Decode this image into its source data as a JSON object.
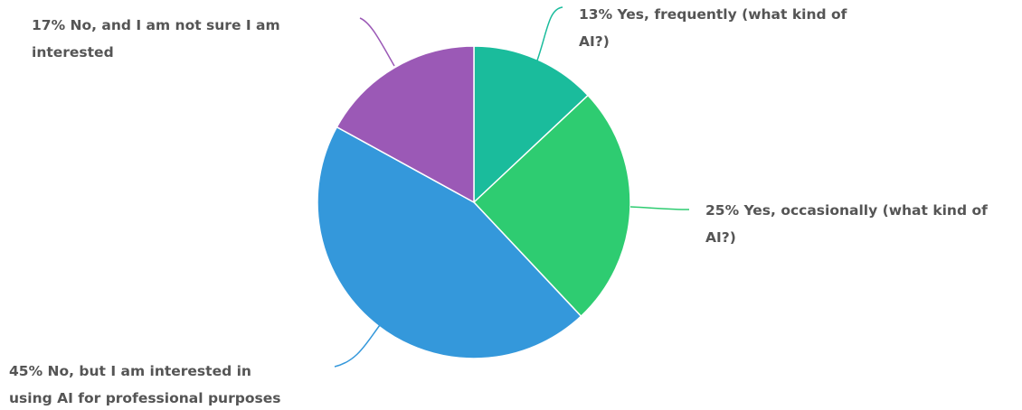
{
  "chart_data": {
    "type": "pie",
    "slices": [
      {
        "percent_label": "13%",
        "label": "Yes, frequently (what kind of AI?)",
        "value": 13,
        "color": "#1abc9c"
      },
      {
        "percent_label": "25%",
        "label": "Yes, occasionally (what kind of AI?)",
        "value": 25,
        "color": "#2ecc71"
      },
      {
        "percent_label": "45%",
        "label": "No, but I am interested in using AI for professional purposes",
        "value": 45,
        "color": "#3498db"
      },
      {
        "percent_label": "17%",
        "label": "No, and I am not sure I am interested",
        "value": 17,
        "color": "#9b59b6"
      }
    ],
    "labels_display": [
      [
        "13% Yes, frequently (what kind of",
        "AI?)"
      ],
      [
        "25% Yes, occasionally (what kind of",
        "AI?)"
      ],
      [
        "45% No, but I am interested in",
        "using AI for professional purposes"
      ],
      [
        "17% No, and I am not sure I am",
        "interested"
      ]
    ]
  }
}
